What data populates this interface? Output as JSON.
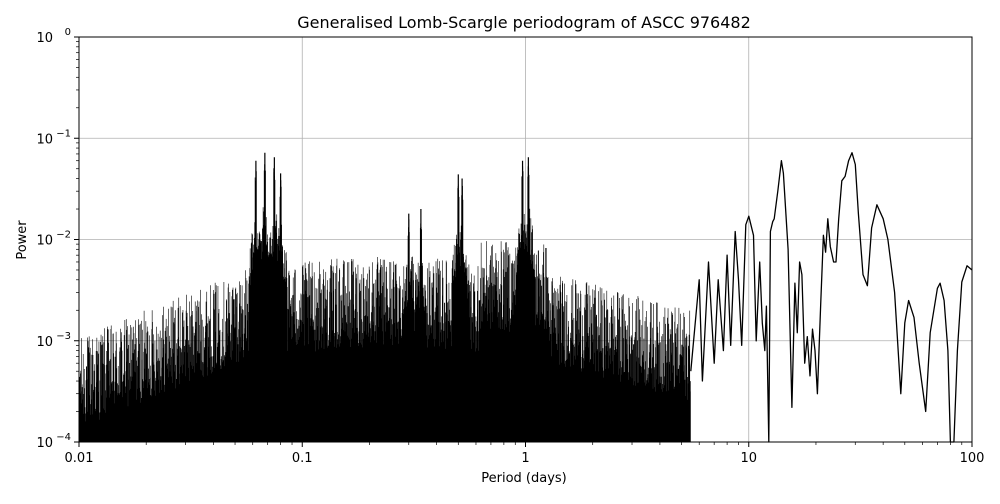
{
  "chart_data": {
    "type": "line",
    "title": "Generalised Lomb-Scargle periodogram of ASCC 976482",
    "xlabel": "Period (days)",
    "ylabel": "Power",
    "xscale": "log",
    "yscale": "log",
    "xlim": [
      0.01,
      100
    ],
    "ylim": [
      0.0001,
      1
    ],
    "grid": true,
    "line_color": "#000000",
    "x_ticks": [
      {
        "value": 0.01,
        "label": "0.01"
      },
      {
        "value": 0.1,
        "label": "0.1"
      },
      {
        "value": 1,
        "label": "1"
      },
      {
        "value": 10,
        "label": "10"
      },
      {
        "value": 100,
        "label": "100"
      }
    ],
    "y_ticks": [
      {
        "value": 0.0001,
        "base": "10",
        "exp": "−4"
      },
      {
        "value": 0.001,
        "base": "10",
        "exp": "−3"
      },
      {
        "value": 0.01,
        "base": "10",
        "exp": "−2"
      },
      {
        "value": 0.1,
        "base": "10",
        "exp": "−1"
      },
      {
        "value": 1,
        "base": "10",
        "exp": "0"
      }
    ],
    "peaks": [
      {
        "x": 0.062,
        "y": 0.06
      },
      {
        "x": 0.068,
        "y": 0.072
      },
      {
        "x": 0.075,
        "y": 0.065
      },
      {
        "x": 0.08,
        "y": 0.045
      },
      {
        "x": 0.3,
        "y": 0.018
      },
      {
        "x": 0.34,
        "y": 0.02
      },
      {
        "x": 0.5,
        "y": 0.044
      },
      {
        "x": 0.52,
        "y": 0.04
      },
      {
        "x": 0.97,
        "y": 0.06
      },
      {
        "x": 1.03,
        "y": 0.065
      }
    ],
    "series": [
      {
        "x": [
          5.5,
          6.0,
          6.2,
          6.6,
          7.0,
          7.3,
          7.7,
          8.0,
          8.3,
          8.7,
          9.0,
          9.3,
          9.7,
          10.0,
          10.5,
          10.8,
          11.2,
          11.5,
          11.8,
          12.0,
          12.3,
          12.5,
          12.8,
          13.0,
          13.5,
          14.0,
          14.3,
          15.0,
          15.6,
          16.1,
          16.5,
          16.9,
          17.3,
          17.8,
          18.3,
          18.8,
          19.3,
          19.8,
          20.3,
          21.0,
          21.6,
          22.1,
          22.6,
          23.2,
          24.0,
          24.6,
          25.3,
          26.1,
          27.0,
          28.0,
          29.0,
          30.0,
          31.0,
          32.5,
          34.0,
          35.5,
          37.5,
          40.0,
          42.0,
          45.0,
          48.0,
          50.0,
          52.0,
          55.0,
          58.0,
          62.0,
          65.0,
          70.0,
          72.0,
          75.0,
          78.0,
          80.0,
          83.0,
          86.0,
          90.0,
          95.0,
          100.0
        ],
        "y": [
          0.0005,
          0.004,
          0.0004,
          0.006,
          0.0006,
          0.004,
          0.0008,
          0.007,
          0.0009,
          0.012,
          0.004,
          0.0009,
          0.014,
          0.017,
          0.011,
          0.001,
          0.006,
          0.0015,
          0.0008,
          0.0022,
          0.0001,
          0.012,
          0.015,
          0.016,
          0.03,
          0.06,
          0.045,
          0.008,
          0.00022,
          0.0037,
          0.0012,
          0.006,
          0.0045,
          0.0006,
          0.0011,
          0.00045,
          0.0013,
          0.0008,
          0.0003,
          0.0023,
          0.011,
          0.0075,
          0.016,
          0.0085,
          0.006,
          0.006,
          0.016,
          0.038,
          0.042,
          0.06,
          0.072,
          0.055,
          0.018,
          0.0045,
          0.0035,
          0.013,
          0.022,
          0.016,
          0.01,
          0.003,
          0.0003,
          0.0015,
          0.0025,
          0.0017,
          0.0006,
          0.0002,
          0.0012,
          0.0033,
          0.0037,
          0.0025,
          0.0008,
          0.0001,
          0.0001,
          0.0008,
          0.0038,
          0.0055,
          0.005
        ]
      }
    ]
  }
}
